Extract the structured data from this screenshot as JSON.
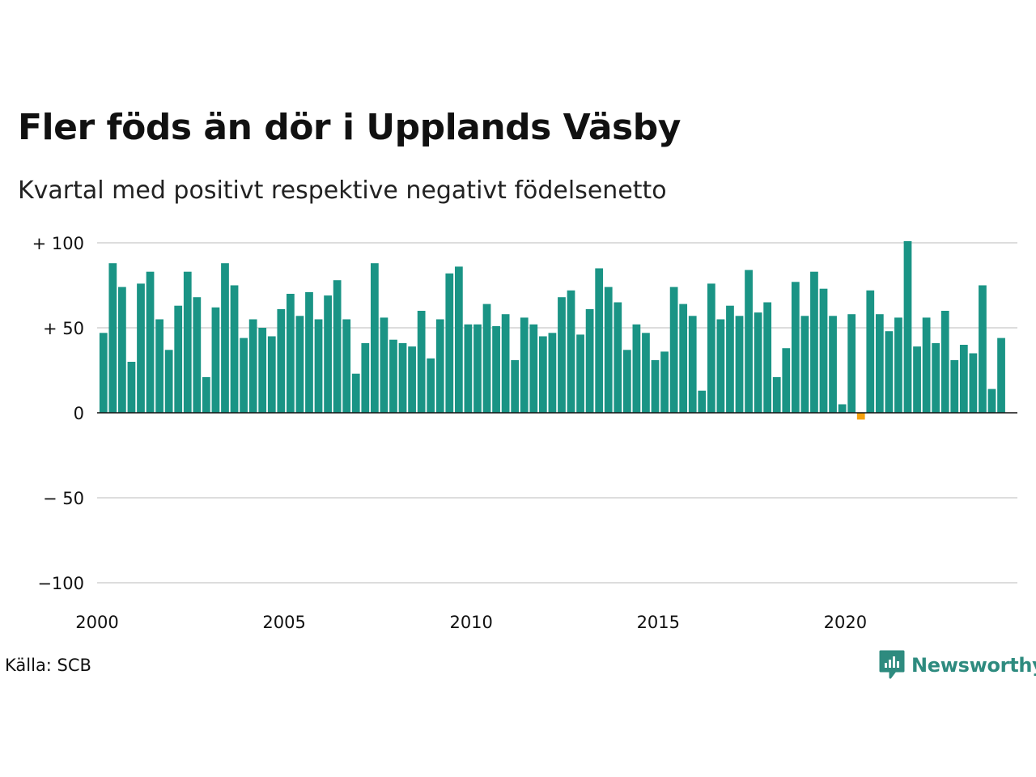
{
  "title": "Fler föds än dör i Upplands Väsby",
  "subtitle": "Kvartal med positivt respektive negativt födelsenetto",
  "source": "Källa: SCB",
  "logo_text": "Newsworthy",
  "colors": {
    "positive": "#1a9485",
    "negative": "#f5a00c",
    "grid": "#dddddd",
    "axis": "#111111"
  },
  "chart_data": {
    "type": "bar",
    "x_start_year": 2000,
    "x_start_quarter": 1,
    "ylim": [
      -100,
      100
    ],
    "xlim_years": [
      2000,
      2024.6
    ],
    "y_ticks": [
      {
        "value": 100,
        "label": "+ 100"
      },
      {
        "value": 50,
        "label": "+  50"
      },
      {
        "value": 0,
        "label": "0"
      },
      {
        "value": -50,
        "label": "− 50"
      },
      {
        "value": -100,
        "label": "−100"
      }
    ],
    "x_ticks": [
      {
        "value": 2000,
        "label": "2000"
      },
      {
        "value": 2005,
        "label": "2005"
      },
      {
        "value": 2010,
        "label": "2010"
      },
      {
        "value": 2015,
        "label": "2015"
      },
      {
        "value": 2020,
        "label": "2020"
      }
    ],
    "values": [
      47,
      88,
      74,
      30,
      76,
      83,
      55,
      37,
      63,
      83,
      68,
      21,
      62,
      88,
      75,
      44,
      55,
      50,
      45,
      61,
      70,
      57,
      71,
      55,
      69,
      78,
      55,
      23,
      41,
      88,
      56,
      43,
      41,
      39,
      60,
      32,
      55,
      82,
      86,
      52,
      52,
      64,
      51,
      58,
      31,
      56,
      52,
      45,
      47,
      68,
      72,
      46,
      61,
      85,
      74,
      65,
      37,
      52,
      47,
      31,
      36,
      74,
      64,
      57,
      13,
      76,
      55,
      63,
      57,
      84,
      59,
      65,
      21,
      38,
      77,
      57,
      83,
      73,
      57,
      5,
      58,
      -4,
      72,
      58,
      48,
      56,
      101,
      39,
      56,
      41,
      60,
      31,
      40,
      35,
      75,
      14,
      44
    ]
  }
}
